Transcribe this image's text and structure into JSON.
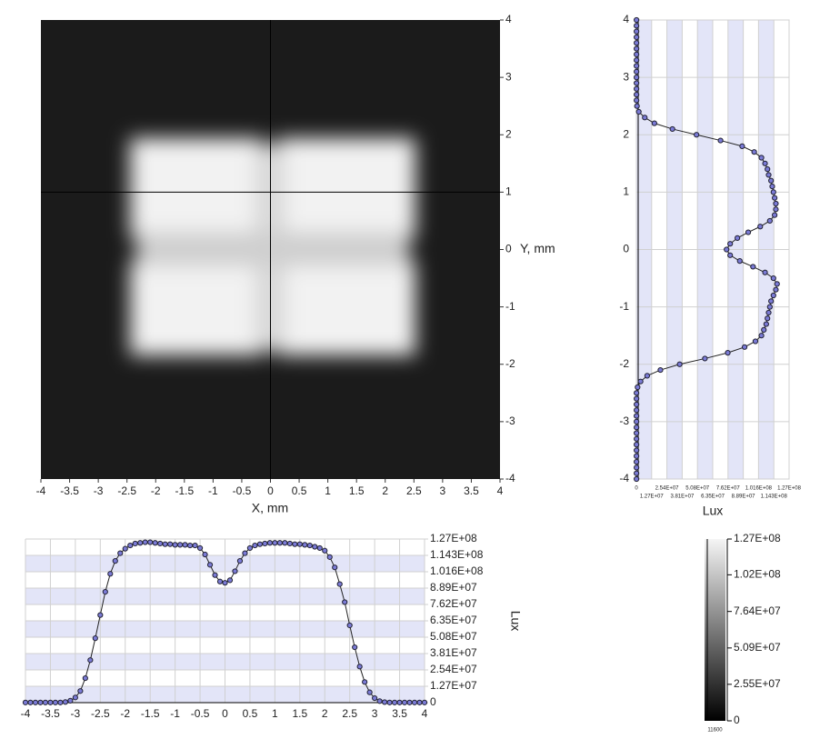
{
  "chart_data": [
    {
      "type": "image",
      "xlabel": "X, mm",
      "ylabel": "Y, mm",
      "xlim": [
        -4,
        4
      ],
      "ylim": [
        -4,
        4
      ],
      "xticks": [
        -4,
        -3.5,
        -3,
        -2.5,
        -2,
        -1.5,
        -1,
        -0.5,
        0,
        0.5,
        1,
        1.5,
        2,
        2.5,
        3,
        3.5,
        4
      ],
      "yticks": [
        4,
        3,
        2,
        1,
        0,
        -1,
        -2,
        -3,
        -4
      ],
      "crosshair_x": 0,
      "crosshair_y": 1
    },
    {
      "type": "vline",
      "xlabel": "Lux",
      "color": "#7b7bd6",
      "bands": true,
      "xlim": [
        0,
        127000000.0
      ],
      "ylim": [
        -4,
        4
      ],
      "xticks": [
        0,
        {
          "value": 12700000.0,
          "label": "1.27E+07"
        },
        {
          "value": 25400000.0,
          "label": "2.54E+07"
        },
        {
          "value": 38100000.0,
          "label": "3.81E+07"
        },
        {
          "value": 50800000.0,
          "label": "5.08E+07"
        },
        {
          "value": 63500000.0,
          "label": "6.35E+07"
        },
        {
          "value": 76200000.0,
          "label": "7.62E+07"
        },
        {
          "value": 88900000.0,
          "label": "8.89E+07"
        },
        {
          "value": 101600000.0,
          "label": "1.016E+08"
        },
        {
          "value": 114300000.0,
          "label": "1.143E+08"
        },
        {
          "value": 127000000.0,
          "label": "1.27E+08"
        }
      ],
      "yticks": [
        4,
        3,
        2,
        1,
        0,
        -1,
        -2,
        -3,
        -4
      ],
      "y": [
        4,
        3.9,
        3.8,
        3.7,
        3.6,
        3.5,
        3.4,
        3.3,
        3.2,
        3.1,
        3,
        2.9,
        2.8,
        2.7,
        2.6,
        2.5,
        2.4,
        2.3,
        2.2,
        2.1,
        2,
        1.9,
        1.8,
        1.7,
        1.6,
        1.5,
        1.4,
        1.3,
        1.2,
        1.1,
        1,
        0.9,
        0.8,
        0.7,
        0.6,
        0.5,
        0.4,
        0.3,
        0.2,
        0.1,
        0,
        -0.1,
        -0.2,
        -0.3,
        -0.4,
        -0.5,
        -0.6,
        -0.7,
        -0.8,
        -0.9,
        -1,
        -1.1,
        -1.2,
        -1.3,
        -1.4,
        -1.5,
        -1.6,
        -1.7,
        -1.8,
        -1.9,
        -2,
        -2.1,
        -2.2,
        -2.3,
        -2.4,
        -2.5,
        -2.6,
        -2.7,
        -2.8,
        -2.9,
        -3,
        -3.1,
        -3.2,
        -3.3,
        -3.4,
        -3.5,
        -3.6,
        -3.7,
        -3.8,
        -3.9,
        -4
      ],
      "values": [
        100000.0,
        100000.0,
        100000.0,
        100000.0,
        100000.0,
        100000.0,
        100000.0,
        100000.0,
        100000.0,
        100000.0,
        100000.0,
        100000.0,
        100000.0,
        100000.0,
        100000.0,
        500000.0,
        2000000.0,
        7000000.0,
        15000000.0,
        30000000.0,
        50000000.0,
        70000000.0,
        88000000.0,
        98000000.0,
        104000000.0,
        107000000.0,
        109000000.0,
        110000000.0,
        112000000.0,
        113000000.0,
        114000000.0,
        115000000.0,
        116000000.0,
        116000000.0,
        115000000.0,
        111000000.0,
        103000000.0,
        93000000.0,
        84000000.0,
        78000000.0,
        75000000.0,
        78000000.0,
        86000000.0,
        97000000.0,
        107000000.0,
        114000000.0,
        117000000.0,
        116000000.0,
        114000000.0,
        112000000.0,
        111000000.0,
        110000000.0,
        109000000.0,
        108000000.0,
        106000000.0,
        104000000.0,
        99000000.0,
        90000000.0,
        76000000.0,
        57000000.0,
        36000000.0,
        20000000.0,
        9000000.0,
        3500000.0,
        1000000.0,
        100000.0,
        100000.0,
        100000.0,
        100000.0,
        100000.0,
        100000.0,
        100000.0,
        100000.0,
        100000.0,
        100000.0,
        100000.0,
        100000.0,
        100000.0,
        100000.0,
        100000.0,
        100000.0
      ]
    },
    {
      "type": "line",
      "ylabel": "Lux",
      "color": "#7b7bd6",
      "bands": true,
      "xlim": [
        -4,
        4
      ],
      "ylim": [
        0,
        127000000.0
      ],
      "xticks": [
        -4,
        -3.5,
        -3,
        -2.5,
        -2,
        -1.5,
        -1,
        -0.5,
        0,
        0.5,
        1,
        1.5,
        2,
        2.5,
        3,
        3.5,
        4
      ],
      "yticks": [
        0,
        {
          "value": 12700000.0,
          "label": "1.27E+07"
        },
        {
          "value": 25400000.0,
          "label": "2.54E+07"
        },
        {
          "value": 38100000.0,
          "label": "3.81E+07"
        },
        {
          "value": 50800000.0,
          "label": "5.08E+07"
        },
        {
          "value": 63500000.0,
          "label": "6.35E+07"
        },
        {
          "value": 76200000.0,
          "label": "7.62E+07"
        },
        {
          "value": 88900000.0,
          "label": "8.89E+07"
        },
        {
          "value": 101600000.0,
          "label": "1.016E+08"
        },
        {
          "value": 114300000.0,
          "label": "1.143E+08"
        },
        {
          "value": 127000000.0,
          "label": "1.27E+08"
        }
      ],
      "x": [
        -4,
        -3.9,
        -3.8,
        -3.7,
        -3.6,
        -3.5,
        -3.4,
        -3.3,
        -3.2,
        -3.1,
        -3,
        -2.9,
        -2.8,
        -2.7,
        -2.6,
        -2.5,
        -2.4,
        -2.3,
        -2.2,
        -2.1,
        -2,
        -1.9,
        -1.8,
        -1.7,
        -1.6,
        -1.5,
        -1.4,
        -1.3,
        -1.2,
        -1.1,
        -1,
        -0.9,
        -0.8,
        -0.7,
        -0.6,
        -0.5,
        -0.4,
        -0.3,
        -0.2,
        -0.1,
        0,
        0.1,
        0.2,
        0.3,
        0.4,
        0.5,
        0.6,
        0.7,
        0.8,
        0.9,
        1,
        1.1,
        1.2,
        1.3,
        1.4,
        1.5,
        1.6,
        1.7,
        1.8,
        1.9,
        2,
        2.1,
        2.2,
        2.3,
        2.4,
        2.5,
        2.6,
        2.7,
        2.8,
        2.9,
        3,
        3.1,
        3.2,
        3.3,
        3.4,
        3.5,
        3.6,
        3.7,
        3.8,
        3.9,
        4
      ],
      "values": [
        100000.0,
        100000.0,
        100000.0,
        100000.0,
        100000.0,
        100000.0,
        100000.0,
        100000.0,
        500000.0,
        1500000.0,
        4000000.0,
        9000000.0,
        19000000.0,
        33000000.0,
        50000000.0,
        68000000.0,
        86000000.0,
        100000000.0,
        110000000.0,
        116000000.0,
        119500000.0,
        122000000.0,
        123500000.0,
        124000000.0,
        124500000.0,
        124500000.0,
        124000000.0,
        123500000.0,
        123000000.0,
        123000000.0,
        122500000.0,
        122500000.0,
        122500000.0,
        122000000.0,
        122000000.0,
        120000000.0,
        115000000.0,
        107000000.0,
        99000000.0,
        94000000.0,
        93000000.0,
        95000000.0,
        102000000.0,
        110000000.0,
        116000000.0,
        120000000.0,
        122000000.0,
        123000000.0,
        123500000.0,
        124000000.0,
        124000000.0,
        124000000.0,
        124000000.0,
        123500000.0,
        123000000.0,
        123000000.0,
        122500000.0,
        122000000.0,
        121000000.0,
        120000000.0,
        118000000.0,
        113000000.0,
        105000000.0,
        92000000.0,
        78000000.0,
        60000000.0,
        43000000.0,
        28000000.0,
        16000000.0,
        8000000.0,
        3500000.0,
        1200000.0,
        400000.0,
        100000.0,
        100000.0,
        100000.0,
        100000.0,
        100000.0,
        100000.0,
        100000.0,
        100000.0
      ]
    },
    {
      "type": "colorbar",
      "lim": [
        0,
        127000000.0
      ],
      "min": 11600,
      "ticks": [
        {
          "value": 127000000.0,
          "label": "1.27E+08"
        },
        {
          "value": 102000000.0,
          "label": "1.02E+08"
        },
        {
          "value": 76400000.0,
          "label": "7.64E+07"
        },
        {
          "value": 50900000.0,
          "label": "5.09E+07"
        },
        {
          "value": 25500000.0,
          "label": "2.55E+07"
        },
        0
      ]
    }
  ]
}
